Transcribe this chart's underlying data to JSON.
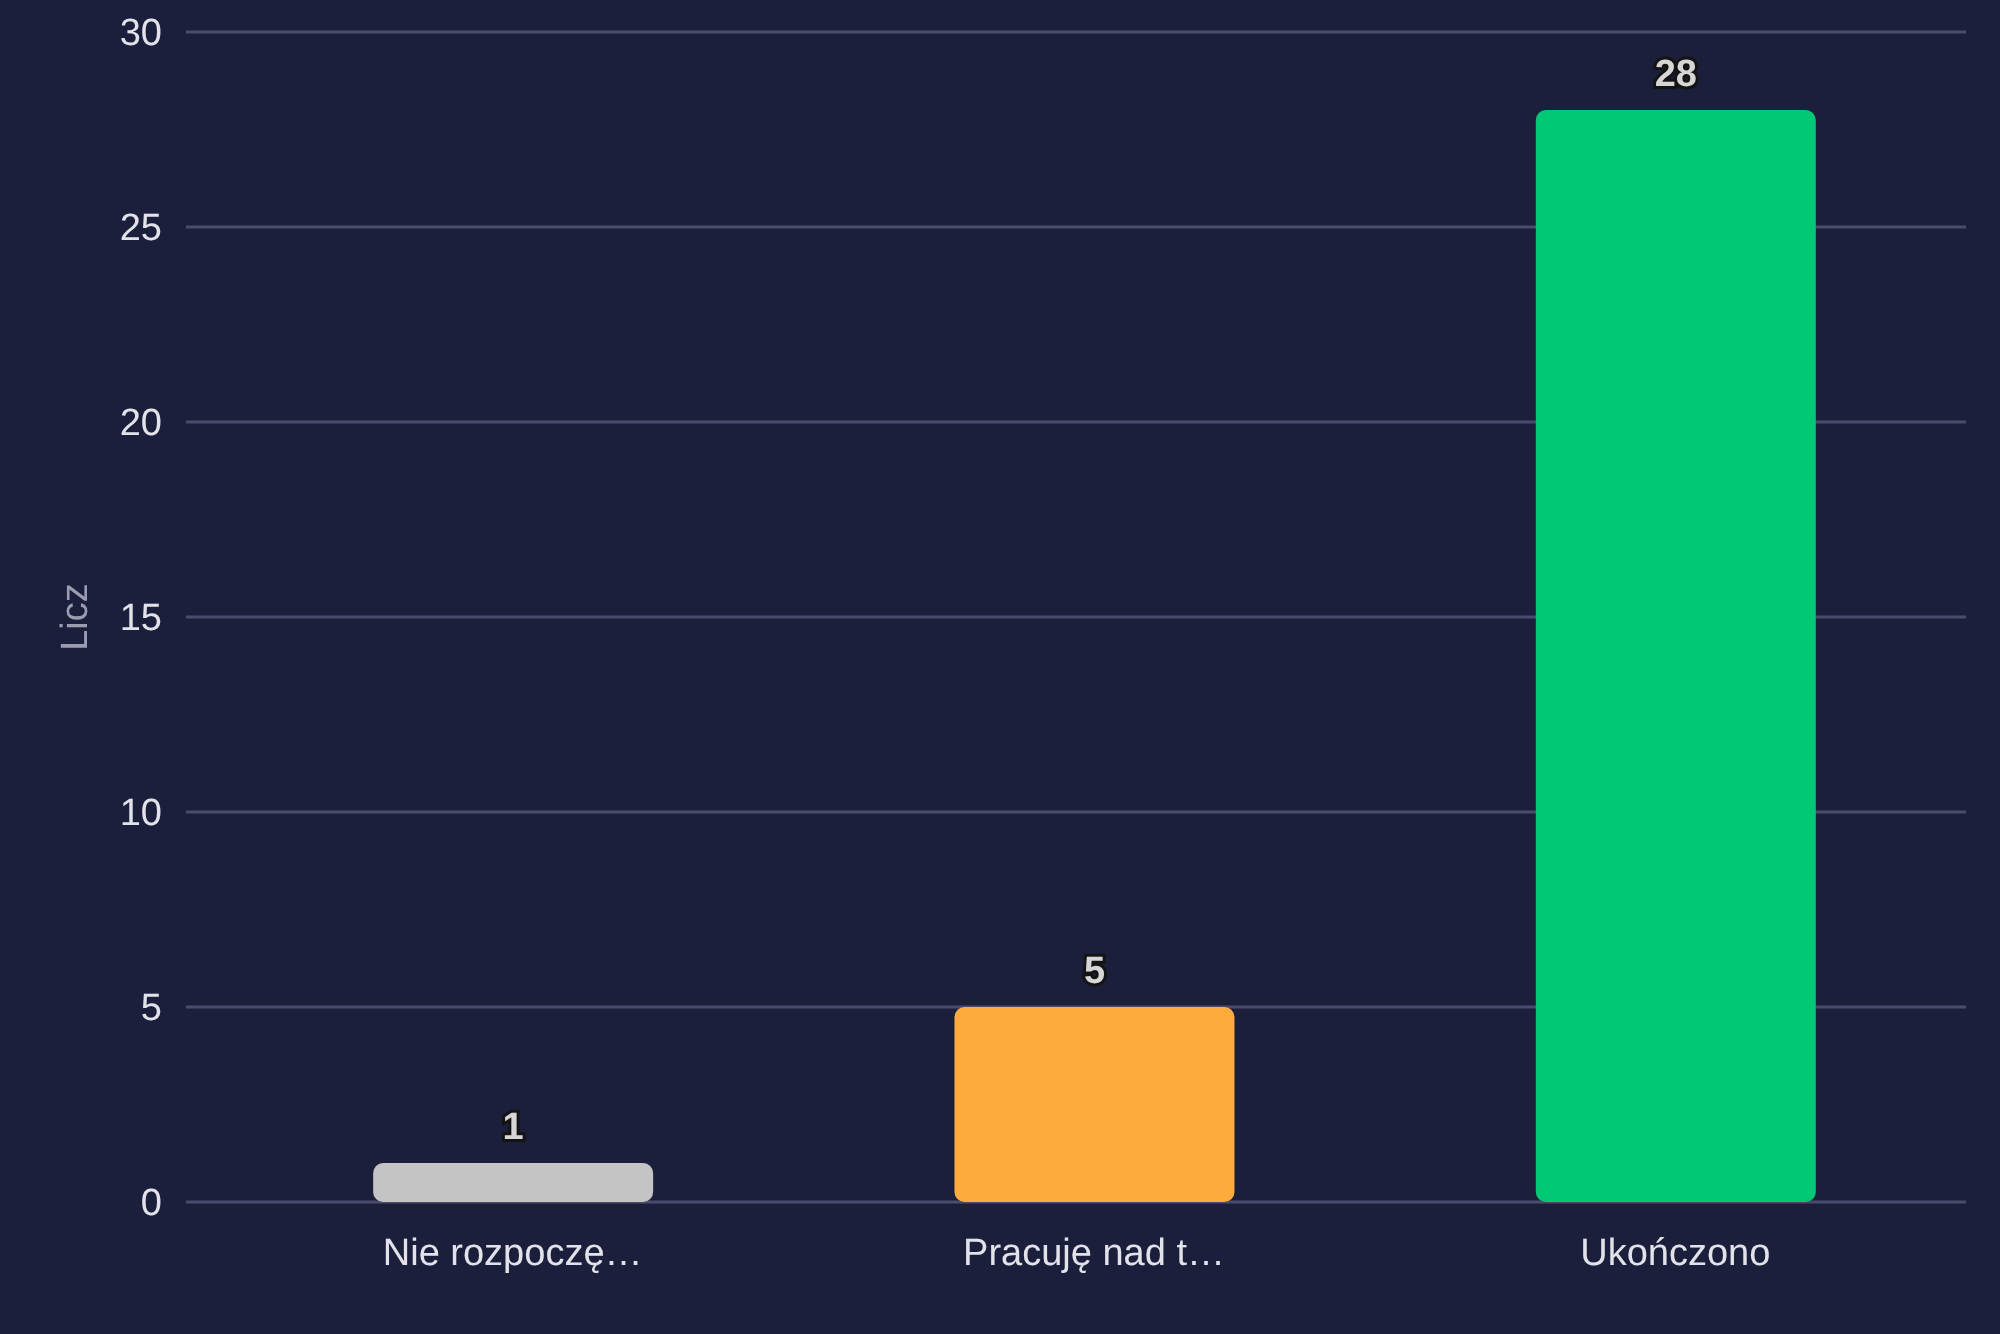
{
  "chart_data": {
    "type": "bar",
    "ylabel": "Licz",
    "categories": [
      "Nie rozpoczę…",
      "Pracuję nad t…",
      "Ukończono"
    ],
    "values": [
      1,
      5,
      28
    ],
    "colors": [
      "#c4c4c4",
      "#fdab3d",
      "#00c875"
    ],
    "ylim": [
      0,
      30
    ],
    "yticks": [
      0,
      5,
      10,
      15,
      20,
      25,
      30
    ],
    "grid": "y",
    "data_labels": true
  }
}
